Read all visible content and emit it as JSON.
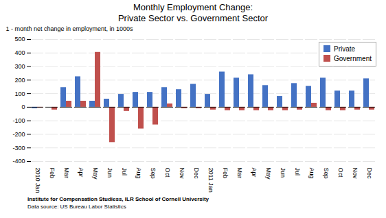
{
  "chart_data": {
    "type": "bar",
    "title": "Monthly Employment Change:",
    "subtitle": "Private Sector vs. Government Sector",
    "ylabel": "1 - month net change in employment, in 1000s",
    "annotations": [
      "Institute for Compensation Studiess, ILR School of Cornell University",
      "Data source: US Bureau Labor Statistics"
    ],
    "categories": [
      "2010 Jan",
      "Feb",
      "Mar",
      "Apr",
      "May",
      "Jun",
      "Jul",
      "Aug",
      "Sep",
      "Oct",
      "Nov",
      "Dec",
      "2011 Jan",
      "Feb",
      "Mar",
      "Apr",
      "May",
      "Jun",
      "Jul",
      "Aug",
      "Sep",
      "Oct",
      "Nov",
      "Dec"
    ],
    "series": [
      {
        "name": "Private",
        "color": "#4472C4",
        "values": [
          -10,
          0,
          145,
          225,
          45,
          60,
          95,
          110,
          110,
          145,
          130,
          170,
          95,
          260,
          215,
          240,
          160,
          80,
          175,
          155,
          215,
          120,
          120,
          210
        ]
      },
      {
        "name": "Government",
        "color": "#C0504D",
        "values": [
          -5,
          -20,
          45,
          45,
          405,
          -260,
          -30,
          -160,
          -130,
          25,
          -10,
          -10,
          -20,
          -25,
          -25,
          -25,
          -25,
          -25,
          -20,
          30,
          -25,
          -25,
          -20,
          -20
        ]
      }
    ],
    "ylim": [
      -400,
      500
    ],
    "yticks": [
      -400,
      -300,
      -200,
      -100,
      0,
      100,
      200,
      300,
      400,
      500
    ],
    "grid": true,
    "legend": "upper right"
  }
}
